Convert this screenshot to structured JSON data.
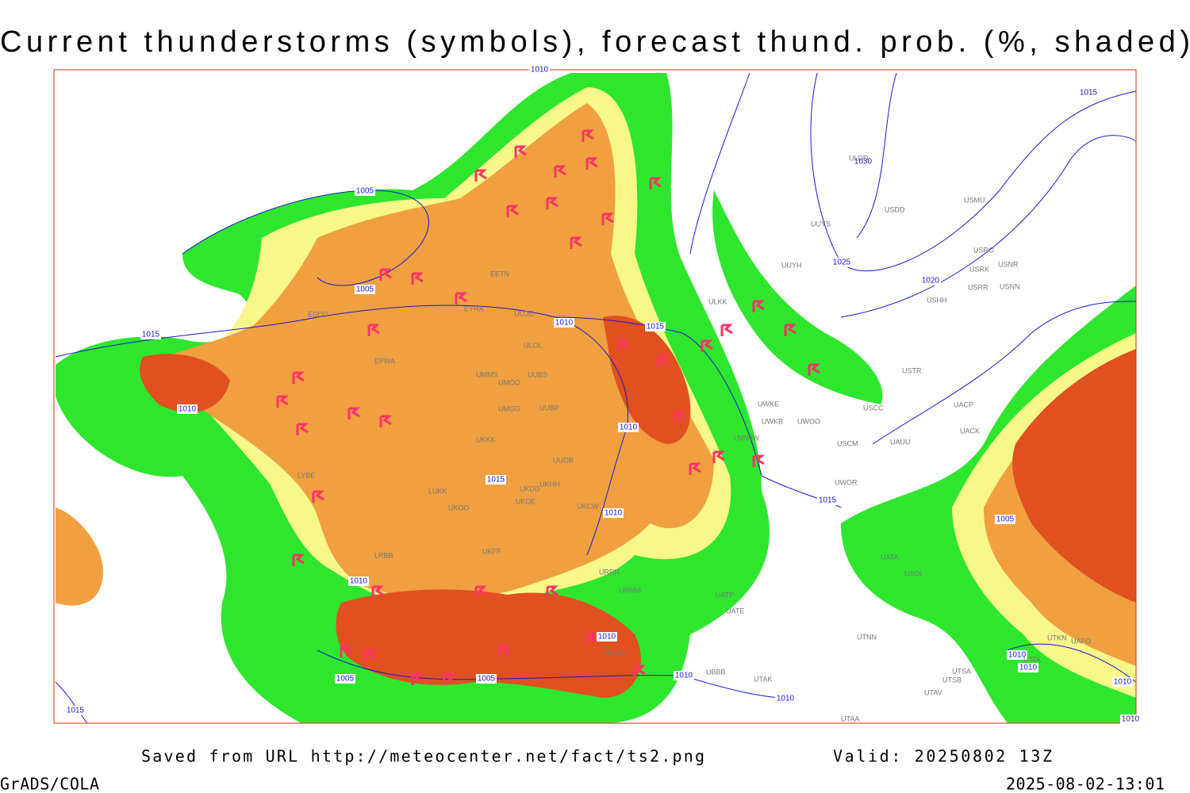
{
  "header": {
    "title": "Current thunderstorms (symbols), forecast thund. prob. (%, shaded)"
  },
  "footer": {
    "source": "Saved from URL http://meteocenter.net/fact/ts2.png",
    "valid": "Valid: 20250802 13Z",
    "software": "GrADS/COLA",
    "timestamp": "2025-08-02-13:01"
  },
  "map": {
    "isobar_labels": [
      1010,
      1005,
      1005,
      1015,
      1010,
      1010,
      1015,
      1010,
      1010,
      1015,
      1010,
      1005,
      1005,
      1010,
      1010,
      1010,
      1015,
      1015,
      1025,
      1020,
      1030,
      1015,
      1005,
      1010,
      1010,
      1010,
      1010
    ],
    "stations": [
      "ULDD",
      "USDD",
      "UUYS",
      "UUYH",
      "USMU",
      "USRO",
      "USRK",
      "USNR",
      "USHH",
      "USRR",
      "USNN",
      "ULKK",
      "USTR",
      "USCC",
      "UACP",
      "UACK",
      "UAUU",
      "USCM",
      "UWKE",
      "UWKB",
      "UWOO",
      "UWWW",
      "UWOR",
      "UATA",
      "UAOL",
      "UATE",
      "UATP",
      "UTNN",
      "UTAK",
      "UTAA",
      "UTSB",
      "UTAV",
      "UTSA",
      "UTDL",
      "UTKN",
      "UAFO",
      "UUBS",
      "UUBP",
      "UMMS",
      "UMOO",
      "UMGG",
      "UKKK",
      "UUOB",
      "UKHH",
      "UKDD",
      "UKDE",
      "UKCW",
      "LUKK",
      "UKOO",
      "UKFF",
      "EPWA",
      "EDDD",
      "EETN",
      "ULOL",
      "ULOD",
      "EYRA",
      "LYBE",
      "LRBB",
      "UBBB",
      "UDSG",
      "URMM",
      "URRR"
    ]
  }
}
